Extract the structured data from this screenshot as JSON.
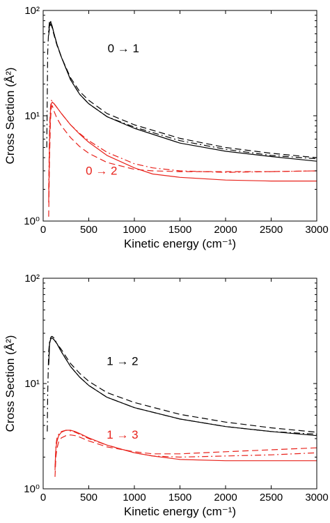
{
  "chart_data": [
    {
      "type": "line",
      "xlabel": "Kinetic energy (cm⁻¹)",
      "ylabel": "Cross Section (Å²)",
      "xlim": [
        0,
        3000
      ],
      "ylim": [
        1,
        100
      ],
      "yscale": "log",
      "xticks": [
        0,
        500,
        1000,
        1500,
        2000,
        2500,
        3000
      ],
      "xtick_labels": [
        "0",
        "500",
        "1000",
        "1500",
        "2000",
        "2500",
        "3000"
      ],
      "yticks": [
        1,
        10,
        100
      ],
      "ytick_labels": [
        "10⁰",
        "10¹",
        "10²"
      ],
      "grid": false,
      "annotations": [
        {
          "text": "0 → 1",
          "color": "#000000",
          "x": 880,
          "y": 40
        },
        {
          "text": "0 → 2",
          "color": "#e8221b",
          "x": 640,
          "y": 2.75
        }
      ],
      "series": [
        {
          "color": "#000000",
          "style": "solid",
          "x": [
            60,
            70,
            80,
            90,
            100,
            120,
            150,
            200,
            300,
            400,
            500,
            700,
            1000,
            1500,
            2000,
            2500,
            3000
          ],
          "y": [
            62,
            72,
            78,
            75,
            70,
            60,
            48,
            36,
            22,
            16,
            13,
            9.8,
            7.6,
            5.5,
            4.6,
            4.1,
            3.7
          ]
        },
        {
          "color": "#000000",
          "style": "dashed",
          "x": [
            60,
            70,
            80,
            90,
            100,
            120,
            150,
            200,
            300,
            400,
            500,
            700,
            1000,
            1500,
            2000,
            2500,
            3000
          ],
          "y": [
            58,
            68,
            74,
            72,
            68,
            58,
            47,
            36,
            23,
            17,
            14,
            10.5,
            8.2,
            6.1,
            5.0,
            4.4,
            4.0
          ]
        },
        {
          "color": "#000000",
          "style": "dashdot",
          "x": [
            40,
            50,
            60,
            70,
            80,
            90,
            100,
            120,
            150,
            200,
            300,
            400,
            500,
            700,
            1000,
            1500,
            2000,
            2500,
            3000
          ],
          "y": [
            5,
            40,
            65,
            80,
            80,
            75,
            70,
            60,
            48,
            36,
            22,
            16,
            13,
            9.8,
            7.8,
            5.8,
            4.8,
            4.2,
            3.9
          ]
        },
        {
          "color": "#e8221b",
          "style": "solid",
          "x": [
            60,
            70,
            80,
            90,
            100,
            120,
            150,
            200,
            300,
            400,
            500,
            700,
            1000,
            1200,
            1500,
            2000,
            2500,
            3000
          ],
          "y": [
            1.5,
            6,
            11,
            13,
            13.5,
            13,
            12,
            10.5,
            8.2,
            6.7,
            5.6,
            4.2,
            3.2,
            2.8,
            2.6,
            2.45,
            2.4,
            2.4
          ]
        },
        {
          "color": "#e8221b",
          "style": "dashed",
          "x": [
            60,
            70,
            80,
            90,
            100,
            120,
            150,
            200,
            300,
            400,
            500,
            700,
            1000,
            1200,
            1500,
            2000,
            2500,
            3000
          ],
          "y": [
            1.1,
            4,
            9,
            12,
            12.5,
            11,
            9.5,
            8,
            6.2,
            5.1,
            4.4,
            3.6,
            3.1,
            3.0,
            2.95,
            2.95,
            2.95,
            3.0
          ]
        },
        {
          "color": "#e8221b",
          "style": "dashdot",
          "x": [
            60,
            70,
            80,
            90,
            100,
            120,
            150,
            200,
            300,
            400,
            500,
            700,
            1000,
            1200,
            1500,
            2000,
            2500,
            3000
          ],
          "y": [
            2,
            8,
            12,
            14,
            13.8,
            13,
            12,
            10.5,
            8.2,
            6.8,
            5.8,
            4.5,
            3.5,
            3.2,
            3.0,
            2.9,
            2.95,
            3.0
          ]
        }
      ]
    },
    {
      "type": "line",
      "xlabel": "Kinetic energy (cm⁻¹)",
      "ylabel": "Cross Section (Å²)",
      "xlim": [
        0,
        3000
      ],
      "ylim": [
        1,
        100
      ],
      "yscale": "log",
      "xticks": [
        0,
        500,
        1000,
        1500,
        2000,
        2500,
        3000
      ],
      "xtick_labels": [
        "0",
        "500",
        "1000",
        "1500",
        "2000",
        "2500",
        "3000"
      ],
      "yticks": [
        1,
        10,
        100
      ],
      "ytick_labels": [
        "10⁰",
        "10¹",
        "10²"
      ],
      "grid": false,
      "annotations": [
        {
          "text": "1 → 2",
          "color": "#000000",
          "x": 870,
          "y": 15
        },
        {
          "text": "1 → 3",
          "color": "#e8221b",
          "x": 870,
          "y": 3.0
        }
      ],
      "series": [
        {
          "color": "#000000",
          "style": "solid",
          "x": [
            60,
            70,
            80,
            90,
            100,
            120,
            150,
            200,
            300,
            400,
            500,
            700,
            1000,
            1500,
            2000,
            2500,
            3000
          ],
          "y": [
            15,
            24,
            26,
            27,
            27,
            26,
            24,
            20,
            14.5,
            11.5,
            9.6,
            7.4,
            5.9,
            4.6,
            3.9,
            3.5,
            3.2
          ]
        },
        {
          "color": "#000000",
          "style": "dashed",
          "x": [
            60,
            70,
            80,
            90,
            100,
            120,
            150,
            200,
            300,
            400,
            500,
            700,
            1000,
            1500,
            2000,
            2500,
            3000
          ],
          "y": [
            15,
            24,
            26,
            27,
            27,
            26,
            24,
            21,
            15.5,
            12.5,
            10.5,
            8.2,
            6.6,
            5.1,
            4.3,
            3.8,
            3.45
          ]
        },
        {
          "color": "#000000",
          "style": "dashdot",
          "x": [
            45,
            50,
            60,
            70,
            80,
            90,
            100,
            120,
            150,
            200,
            300,
            400,
            500,
            700,
            1000,
            1500,
            2000,
            2500,
            3000
          ],
          "y": [
            3.5,
            8,
            20,
            25,
            27,
            28,
            28,
            27,
            24,
            20,
            14.5,
            11.5,
            9.6,
            7.4,
            5.9,
            4.6,
            3.9,
            3.5,
            3.3
          ]
        },
        {
          "color": "#e8221b",
          "style": "solid",
          "x": [
            130,
            140,
            150,
            170,
            200,
            250,
            300,
            350,
            400,
            500,
            700,
            1000,
            1200,
            1500,
            2000,
            2500,
            3000
          ],
          "y": [
            1.6,
            2.4,
            2.8,
            3.2,
            3.45,
            3.6,
            3.6,
            3.5,
            3.35,
            3.05,
            2.6,
            2.2,
            2.05,
            1.9,
            1.85,
            1.85,
            1.85
          ]
        },
        {
          "color": "#e8221b",
          "style": "dashed",
          "x": [
            130,
            140,
            150,
            170,
            200,
            250,
            300,
            350,
            400,
            500,
            700,
            1000,
            1200,
            1500,
            2000,
            2500,
            3000
          ],
          "y": [
            1.3,
            2.0,
            2.4,
            2.8,
            3.05,
            3.2,
            3.25,
            3.2,
            3.1,
            2.85,
            2.5,
            2.25,
            2.15,
            2.15,
            2.25,
            2.35,
            2.45
          ]
        },
        {
          "color": "#e8221b",
          "style": "dashdot",
          "x": [
            130,
            140,
            150,
            170,
            200,
            250,
            300,
            350,
            400,
            500,
            700,
            1000,
            1200,
            1500,
            2000,
            2500,
            3000
          ],
          "y": [
            1.5,
            2.6,
            3.0,
            3.3,
            3.5,
            3.6,
            3.55,
            3.45,
            3.3,
            3.0,
            2.6,
            2.2,
            2.05,
            2.0,
            2.05,
            2.1,
            2.2
          ]
        }
      ]
    }
  ]
}
